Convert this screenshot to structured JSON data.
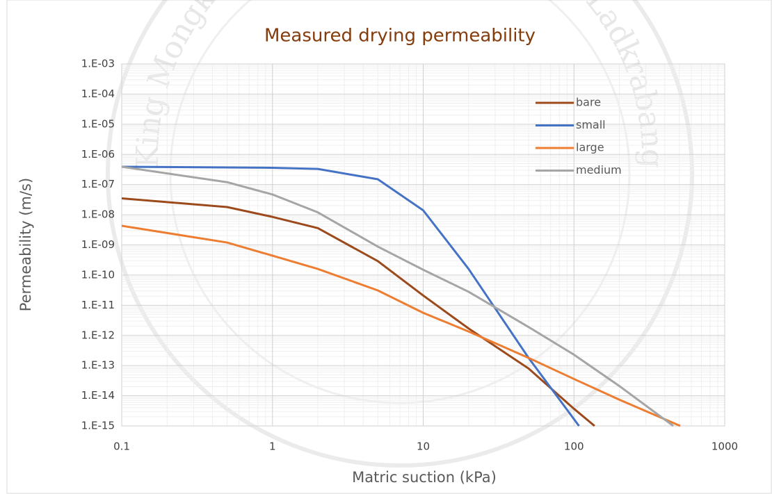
{
  "watermark": "King Mongkut's Institute of Technology Ladkrabang",
  "chart_data": {
    "type": "line",
    "title": "Measured drying permeability",
    "xlabel": "Matric suction (kPa)",
    "ylabel": "Permeability (m/s)",
    "xscale": "log",
    "yscale": "log",
    "xlim": [
      0.1,
      1000
    ],
    "ylim": [
      1e-15,
      0.001
    ],
    "xticks": [
      0.1,
      1,
      10,
      100,
      1000
    ],
    "yticks": [
      {
        "value": 1e-15,
        "label": "1.E-15"
      },
      {
        "value": 1e-14,
        "label": "1.E-14"
      },
      {
        "value": 1e-13,
        "label": "1.E-13"
      },
      {
        "value": 1e-12,
        "label": "1.E-12"
      },
      {
        "value": 1e-11,
        "label": "1.E-11"
      },
      {
        "value": 1e-10,
        "label": "1.E-10"
      },
      {
        "value": 1e-09,
        "label": "1.E-09"
      },
      {
        "value": 1e-08,
        "label": "1.E-08"
      },
      {
        "value": 1e-07,
        "label": "1.E-07"
      },
      {
        "value": 1e-06,
        "label": "1.E-06"
      },
      {
        "value": 1e-05,
        "label": "1.E-05"
      },
      {
        "value": 0.0001,
        "label": "1.E-04"
      },
      {
        "value": 0.001,
        "label": "1.E-03"
      }
    ],
    "grid": true,
    "minor_grid": true,
    "legend": "top-right",
    "series": [
      {
        "name": "bare",
        "color": "#9c4a1c",
        "x": [
          0.1,
          0.5,
          1,
          2,
          5,
          10,
          20,
          50,
          100,
          137
        ],
        "values": [
          3.5e-08,
          1.8e-08,
          8.5e-09,
          3.6e-09,
          2.9e-10,
          2.1e-11,
          1.7e-12,
          8e-14,
          3.7e-15,
          1e-15
        ]
      },
      {
        "name": "small",
        "color": "#4472c4",
        "x": [
          0.1,
          0.5,
          1,
          2,
          5,
          10,
          20,
          50,
          108
        ],
        "values": [
          3.9e-07,
          3.7e-07,
          3.6e-07,
          3.3e-07,
          1.5e-07,
          1.4e-08,
          1.6e-10,
          1.8e-13,
          1e-15
        ]
      },
      {
        "name": "large",
        "color": "#ed7d31",
        "x": [
          0.1,
          0.5,
          1,
          2,
          5,
          10,
          20,
          50,
          100,
          200,
          507
        ],
        "values": [
          4.3e-09,
          1.2e-09,
          4.4e-10,
          1.6e-10,
          3.1e-11,
          5.6e-12,
          1.35e-12,
          1.8e-13,
          3.6e-14,
          7.4e-15,
          1e-15
        ]
      },
      {
        "name": "medium",
        "color": "#a5a5a5",
        "x": [
          0.1,
          0.5,
          1,
          2,
          5,
          10,
          20,
          50,
          100,
          200,
          456
        ],
        "values": [
          3.9e-07,
          1.2e-07,
          4.7e-08,
          1.2e-08,
          8.8e-10,
          1.5e-10,
          2.8e-11,
          1.9e-12,
          2.3e-13,
          2.1e-14,
          1e-15
        ]
      }
    ]
  }
}
